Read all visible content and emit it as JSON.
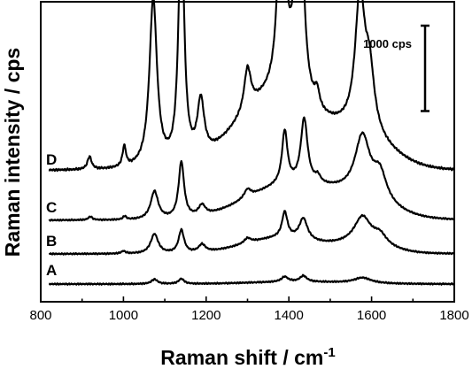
{
  "chart_data": {
    "type": "line",
    "title": "",
    "xlabel": "Raman shift / cm",
    "xlabel_superscript": "-1",
    "ylabel": "Raman intensity / cps",
    "xlim": [
      800,
      1800
    ],
    "xticks": [
      800,
      1000,
      1200,
      1400,
      1600,
      1800
    ],
    "y_ticks_shown": false,
    "grid": false,
    "legend": "none",
    "scale_bar": {
      "label": "1000 cps",
      "value": 1000
    },
    "series": [
      {
        "name": "A",
        "baseline": 0,
        "peaks": [
          {
            "x": 1075,
            "h": 55,
            "w": 9
          },
          {
            "x": 1140,
            "h": 60,
            "w": 8
          },
          {
            "x": 1390,
            "h": 60,
            "w": 10
          },
          {
            "x": 1435,
            "h": 70,
            "w": 10
          },
          {
            "x": 1578,
            "h": 65,
            "w": 25
          }
        ],
        "broad": [
          {
            "x": 1420,
            "h": 25,
            "w": 120
          }
        ]
      },
      {
        "name": "B",
        "baseline": 0,
        "peaks": [
          {
            "x": 1000,
            "h": 30,
            "w": 6
          },
          {
            "x": 1075,
            "h": 230,
            "w": 11
          },
          {
            "x": 1140,
            "h": 270,
            "w": 8
          },
          {
            "x": 1190,
            "h": 90,
            "w": 10
          },
          {
            "x": 1300,
            "h": 60,
            "w": 10
          },
          {
            "x": 1390,
            "h": 300,
            "w": 8
          },
          {
            "x": 1435,
            "h": 250,
            "w": 12
          },
          {
            "x": 1578,
            "h": 310,
            "w": 24
          },
          {
            "x": 1620,
            "h": 120,
            "w": 20
          }
        ],
        "broad": [
          {
            "x": 1380,
            "h": 180,
            "w": 90
          },
          {
            "x": 1580,
            "h": 100,
            "w": 60
          }
        ]
      },
      {
        "name": "C",
        "baseline": 0,
        "peaks": [
          {
            "x": 920,
            "h": 40,
            "w": 6
          },
          {
            "x": 1003,
            "h": 40,
            "w": 5
          },
          {
            "x": 1075,
            "h": 330,
            "w": 11
          },
          {
            "x": 1140,
            "h": 660,
            "w": 8
          },
          {
            "x": 1190,
            "h": 120,
            "w": 10
          },
          {
            "x": 1300,
            "h": 100,
            "w": 10
          },
          {
            "x": 1390,
            "h": 620,
            "w": 8
          },
          {
            "x": 1437,
            "h": 760,
            "w": 10
          },
          {
            "x": 1470,
            "h": 80,
            "w": 8
          },
          {
            "x": 1578,
            "h": 700,
            "w": 22
          },
          {
            "x": 1620,
            "h": 330,
            "w": 20
          }
        ],
        "broad": [
          {
            "x": 1390,
            "h": 380,
            "w": 100
          },
          {
            "x": 1560,
            "h": 200,
            "w": 80
          }
        ]
      },
      {
        "name": "D",
        "baseline": 0,
        "peaks": [
          {
            "x": 918,
            "h": 150,
            "w": 6
          },
          {
            "x": 1002,
            "h": 240,
            "w": 5
          },
          {
            "x": 1072,
            "h": 1980,
            "w": 11
          },
          {
            "x": 1140,
            "h": 2930,
            "w": 8
          },
          {
            "x": 1187,
            "h": 650,
            "w": 10
          },
          {
            "x": 1300,
            "h": 500,
            "w": 10
          },
          {
            "x": 1383,
            "h": 2770,
            "w": 10
          },
          {
            "x": 1425,
            "h": 3270,
            "w": 10
          },
          {
            "x": 1468,
            "h": 200,
            "w": 7
          },
          {
            "x": 1572,
            "h": 1550,
            "w": 14
          },
          {
            "x": 1595,
            "h": 680,
            "w": 14
          }
        ],
        "broad": [
          {
            "x": 1360,
            "h": 800,
            "w": 90
          },
          {
            "x": 1560,
            "h": 380,
            "w": 80
          }
        ]
      }
    ]
  }
}
